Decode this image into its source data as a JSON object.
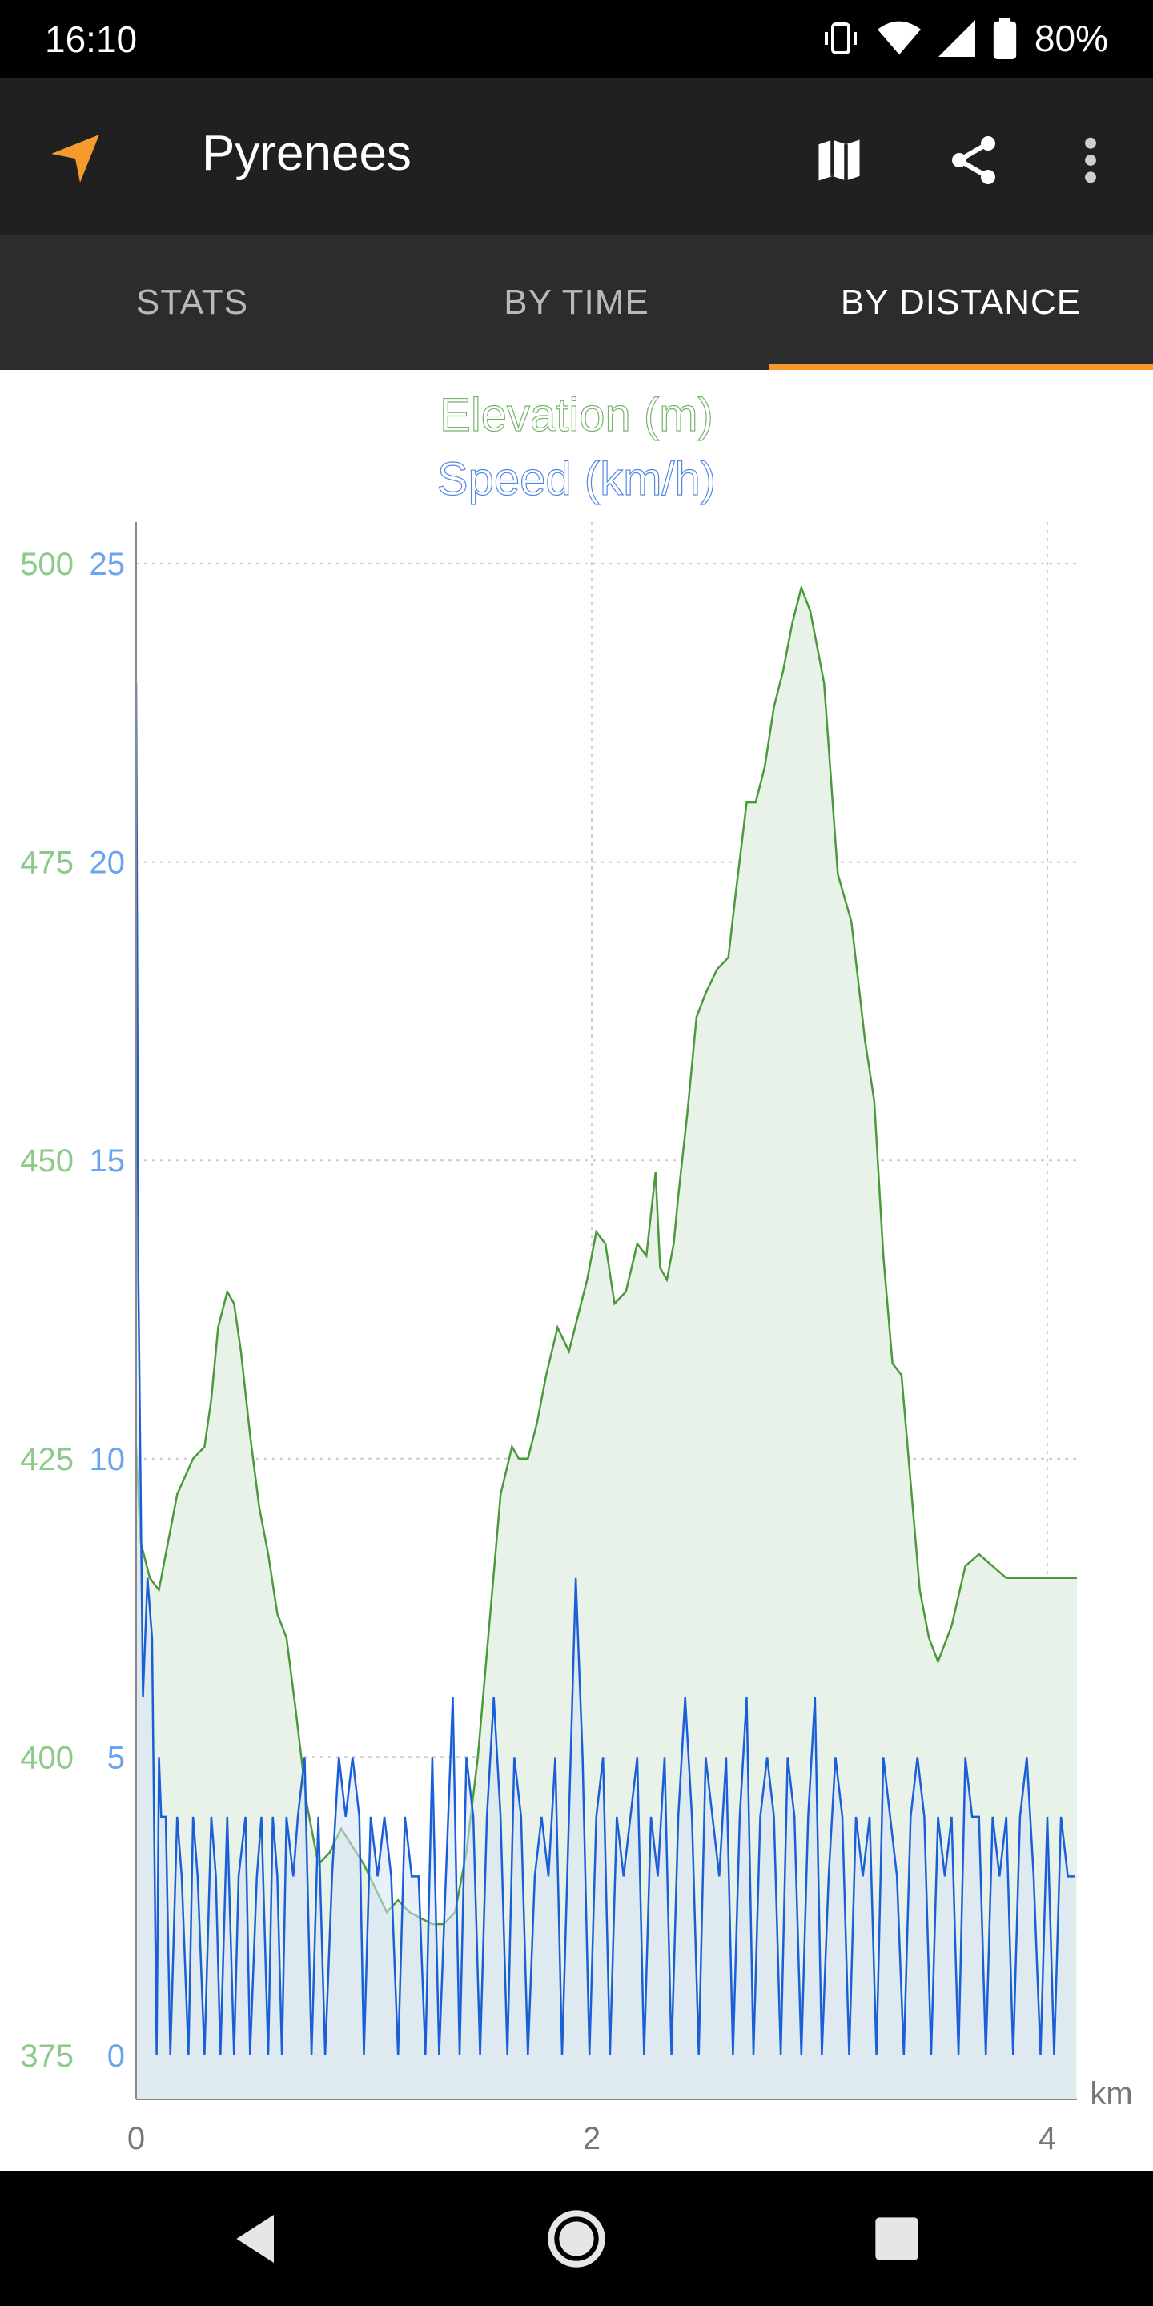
{
  "status_bar": {
    "time": "16:10",
    "battery": "80%",
    "icons": [
      "vibrate-icon",
      "wifi-icon",
      "signal-icon",
      "battery-icon"
    ]
  },
  "app_bar": {
    "title": "Pyrenees",
    "nav_icon": "navigation-arrow-icon",
    "actions": [
      "map-icon",
      "share-icon",
      "overflow-menu-icon"
    ],
    "nav_color": "#f79a2e"
  },
  "tabs": [
    {
      "label": "STATS",
      "active": false
    },
    {
      "label": "BY TIME",
      "active": false
    },
    {
      "label": "BY DISTANCE",
      "active": true
    }
  ],
  "chart_data": {
    "type": "area",
    "title": "Elevation (m)",
    "subtitle": "Speed (km/h)",
    "xlabel": "km",
    "x_ticks": [
      "0",
      "2",
      "4"
    ],
    "xlim": [
      0,
      4.13
    ],
    "grid": true,
    "series": [
      {
        "name": "Elevation (m)",
        "color": "#4a9a3c",
        "fill": "#e9f2e9",
        "axis_ticks": [
          "500",
          "475",
          "450",
          "425",
          "400",
          "375"
        ],
        "ylim": [
          375,
          500
        ],
        "x": [
          0,
          0.02,
          0.06,
          0.1,
          0.13,
          0.18,
          0.25,
          0.3,
          0.33,
          0.36,
          0.4,
          0.43,
          0.46,
          0.5,
          0.54,
          0.58,
          0.62,
          0.66,
          0.7,
          0.75,
          0.8,
          0.85,
          0.9,
          1.0,
          1.05,
          1.1,
          1.15,
          1.2,
          1.3,
          1.35,
          1.4,
          1.45,
          1.5,
          1.55,
          1.6,
          1.65,
          1.68,
          1.72,
          1.76,
          1.8,
          1.85,
          1.9,
          1.94,
          1.98,
          2.02,
          2.06,
          2.1,
          2.15,
          2.2,
          2.24,
          2.28,
          2.3,
          2.33,
          2.36,
          2.38,
          2.42,
          2.46,
          2.5,
          2.55,
          2.6,
          2.63,
          2.68,
          2.72,
          2.76,
          2.8,
          2.84,
          2.88,
          2.92,
          2.96,
          3.02,
          3.08,
          3.14,
          3.2,
          3.24,
          3.28,
          3.32,
          3.36,
          3.4,
          3.44,
          3.48,
          3.52,
          3.58,
          3.64,
          3.7,
          3.76,
          3.82,
          3.88,
          3.94,
          3.98,
          4.02,
          4.06,
          4.1,
          4.13
        ],
        "values": [
          426,
          418,
          415,
          414,
          417,
          422,
          425,
          426,
          430,
          436,
          439,
          438,
          434,
          427,
          421,
          417,
          412,
          410,
          404,
          396,
          391,
          392,
          394,
          391,
          389,
          387,
          388,
          387,
          386,
          386,
          387,
          392,
          400,
          411,
          422,
          426,
          425,
          425,
          428,
          432,
          436,
          434,
          437,
          440,
          444,
          443,
          438,
          439,
          443,
          442,
          449,
          441,
          440,
          443,
          447,
          454,
          462,
          464,
          466,
          467,
          472,
          480,
          480,
          483,
          488,
          491,
          495,
          498,
          496,
          490,
          474,
          470,
          460,
          455,
          442,
          433,
          432,
          423,
          414,
          410,
          408,
          411,
          416,
          417,
          416,
          415,
          415,
          415,
          415,
          415,
          415,
          415,
          415
        ]
      },
      {
        "name": "Speed (km/h)",
        "color": "#1a5fd8",
        "fill": "#d5e3f5",
        "axis_ticks": [
          "25",
          "20",
          "15",
          "10",
          "5",
          "0"
        ],
        "ylim": [
          0,
          25
        ],
        "x": [
          0,
          0.01,
          0.03,
          0.05,
          0.07,
          0.09,
          0.1,
          0.11,
          0.13,
          0.15,
          0.18,
          0.2,
          0.23,
          0.25,
          0.27,
          0.3,
          0.33,
          0.35,
          0.37,
          0.4,
          0.43,
          0.45,
          0.48,
          0.5,
          0.53,
          0.55,
          0.58,
          0.6,
          0.62,
          0.64,
          0.66,
          0.69,
          0.71,
          0.74,
          0.77,
          0.8,
          0.83,
          0.86,
          0.89,
          0.92,
          0.95,
          0.98,
          1.0,
          1.03,
          1.06,
          1.09,
          1.12,
          1.15,
          1.18,
          1.21,
          1.24,
          1.27,
          1.3,
          1.33,
          1.36,
          1.39,
          1.42,
          1.45,
          1.48,
          1.51,
          1.54,
          1.57,
          1.6,
          1.63,
          1.66,
          1.69,
          1.72,
          1.75,
          1.78,
          1.81,
          1.84,
          1.87,
          1.9,
          1.93,
          1.96,
          1.99,
          2.02,
          2.05,
          2.08,
          2.11,
          2.14,
          2.17,
          2.2,
          2.23,
          2.26,
          2.29,
          2.32,
          2.35,
          2.38,
          2.41,
          2.44,
          2.47,
          2.5,
          2.53,
          2.56,
          2.59,
          2.62,
          2.65,
          2.68,
          2.71,
          2.74,
          2.77,
          2.8,
          2.83,
          2.86,
          2.89,
          2.92,
          2.95,
          2.98,
          3.01,
          3.04,
          3.07,
          3.1,
          3.13,
          3.16,
          3.19,
          3.22,
          3.25,
          3.28,
          3.31,
          3.34,
          3.37,
          3.4,
          3.43,
          3.46,
          3.49,
          3.52,
          3.55,
          3.58,
          3.61,
          3.64,
          3.67,
          3.7,
          3.73,
          3.76,
          3.79,
          3.82,
          3.85,
          3.88,
          3.91,
          3.94,
          3.97,
          4.0,
          4.03,
          4.06,
          4.09,
          4.12
        ],
        "values": [
          23,
          13,
          6,
          8,
          7,
          0,
          5,
          4,
          4,
          0,
          4,
          3,
          0,
          4,
          3,
          0,
          4,
          3,
          0,
          4,
          0,
          3,
          4,
          0,
          3,
          4,
          0,
          4,
          3,
          0,
          4,
          3,
          4,
          5,
          0,
          4,
          0,
          3,
          5,
          4,
          5,
          4,
          0,
          4,
          3,
          4,
          3,
          0,
          4,
          3,
          3,
          0,
          5,
          0,
          3,
          6,
          0,
          5,
          4,
          0,
          4,
          6,
          4,
          0,
          5,
          4,
          0,
          3,
          4,
          3,
          5,
          0,
          4,
          8,
          5,
          0,
          4,
          5,
          0,
          4,
          3,
          4,
          5,
          0,
          4,
          3,
          5,
          0,
          4,
          6,
          4,
          0,
          5,
          4,
          3,
          5,
          0,
          4,
          6,
          0,
          4,
          5,
          4,
          0,
          5,
          4,
          0,
          4,
          6,
          0,
          3,
          5,
          4,
          0,
          4,
          3,
          4,
          0,
          5,
          4,
          3,
          0,
          4,
          5,
          4,
          0,
          4,
          3,
          4,
          0,
          5,
          4,
          4,
          0,
          4,
          3,
          4,
          0,
          4,
          5,
          3,
          0,
          4,
          0,
          4,
          3,
          3
        ]
      }
    ]
  }
}
